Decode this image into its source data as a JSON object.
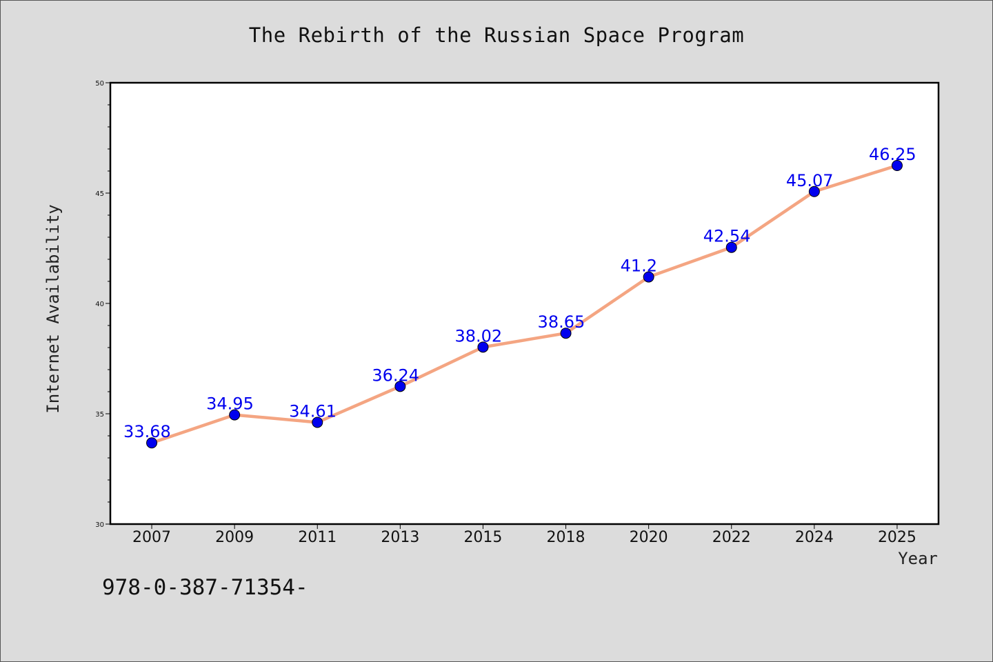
{
  "isbn_text": "978-0-387-71354-",
  "chart_data": {
    "type": "line",
    "title": "The Rebirth of the Russian Space Program",
    "xlabel": "Year",
    "ylabel": "Internet Availability",
    "categories": [
      "2007",
      "2009",
      "2011",
      "2013",
      "2015",
      "2018",
      "2020",
      "2022",
      "2024",
      "2025"
    ],
    "values": [
      33.68,
      34.95,
      34.61,
      36.24,
      38.02,
      38.65,
      41.2,
      42.54,
      45.07,
      46.25
    ],
    "data_labels": [
      "33.68",
      "34.95",
      "34.61",
      "36.24",
      "38.02",
      "38.65",
      "41.2",
      "42.54",
      "45.07",
      "46.25"
    ],
    "ylim": [
      30,
      50
    ],
    "yticks": [
      30,
      35,
      40,
      45,
      50
    ],
    "grid": false,
    "legend": "none",
    "colors": {
      "line": "#f4a582",
      "marker": "#0000ee",
      "data_label": "#0000ee",
      "plot_background": "#ffffff",
      "page_background": "#dcdcdc"
    }
  }
}
